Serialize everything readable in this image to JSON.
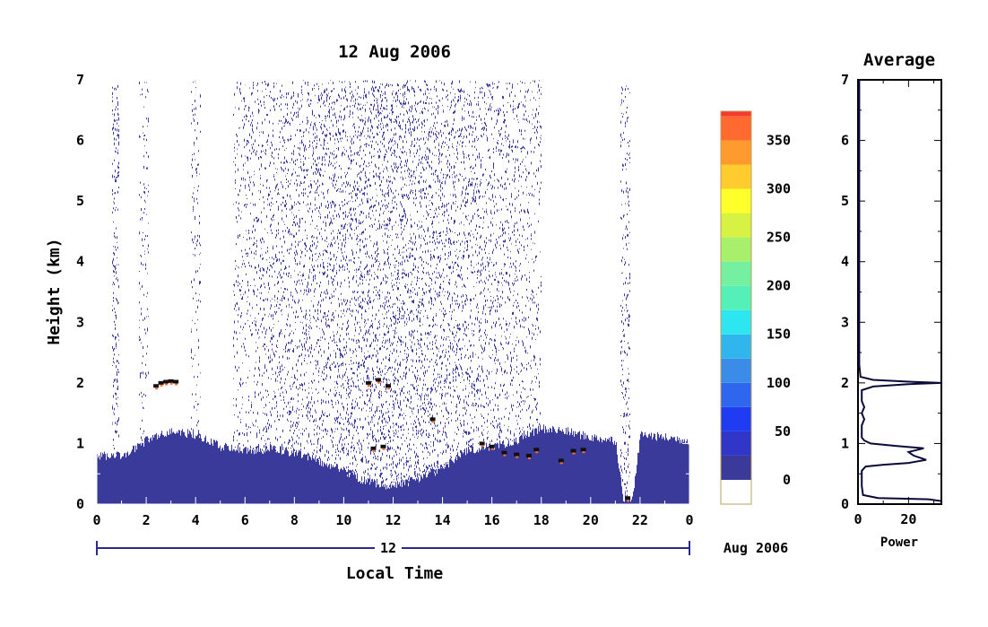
{
  "chart_data": [
    {
      "type": "heatmap",
      "title": "12 Aug 2006",
      "xlabel": "Local Time",
      "ylabel": "Height (km)",
      "date_bar": {
        "day": "12",
        "month_year": "Aug 2006"
      },
      "x_ticks": [
        "0",
        "2",
        "4",
        "6",
        "8",
        "10",
        "12",
        "14",
        "16",
        "18",
        "20",
        "22",
        "0"
      ],
      "x_range_hours": [
        0,
        24
      ],
      "y_ticks": [
        "0",
        "1",
        "2",
        "3",
        "4",
        "5",
        "6",
        "7"
      ],
      "y_range_km": [
        0,
        7
      ],
      "grid": false,
      "colorbar": {
        "ticks": [
          "0",
          "50",
          "100",
          "150",
          "200",
          "250",
          "300",
          "350"
        ],
        "range": [
          -25,
          380
        ],
        "levels": [
          {
            "from": -25,
            "to": 0,
            "color": "#ffffff"
          },
          {
            "from": 0,
            "to": 25,
            "color": "#3a3a9a"
          },
          {
            "from": 25,
            "to": 50,
            "color": "#2f36c8"
          },
          {
            "from": 50,
            "to": 75,
            "color": "#1f3cf2"
          },
          {
            "from": 75,
            "to": 100,
            "color": "#2f66ee"
          },
          {
            "from": 100,
            "to": 125,
            "color": "#3a8ce8"
          },
          {
            "from": 125,
            "to": 150,
            "color": "#30b6ec"
          },
          {
            "from": 150,
            "to": 175,
            "color": "#2de6f0"
          },
          {
            "from": 175,
            "to": 200,
            "color": "#55f0b8"
          },
          {
            "from": 200,
            "to": 225,
            "color": "#75f0a0"
          },
          {
            "from": 225,
            "to": 250,
            "color": "#a8ef6c"
          },
          {
            "from": 250,
            "to": 275,
            "color": "#d8f244"
          },
          {
            "from": 275,
            "to": 300,
            "color": "#ffff2a"
          },
          {
            "from": 300,
            "to": 325,
            "color": "#ffcc30"
          },
          {
            "from": 325,
            "to": 350,
            "color": "#ff9a2f"
          },
          {
            "from": 350,
            "to": 375,
            "color": "#ff6a30"
          },
          {
            "from": 375,
            "to": 380,
            "color": "#f53a30"
          }
        ]
      },
      "boundary_layer_top_km": [
        {
          "x": 0,
          "y": 0.8
        },
        {
          "x": 1,
          "y": 0.8
        },
        {
          "x": 2,
          "y": 1.05
        },
        {
          "x": 3,
          "y": 1.2
        },
        {
          "x": 4,
          "y": 1.15
        },
        {
          "x": 5,
          "y": 0.95
        },
        {
          "x": 6,
          "y": 0.9
        },
        {
          "x": 7,
          "y": 0.9
        },
        {
          "x": 8,
          "y": 0.85
        },
        {
          "x": 9,
          "y": 0.7
        },
        {
          "x": 10,
          "y": 0.55
        },
        {
          "x": 11,
          "y": 0.35
        },
        {
          "x": 12,
          "y": 0.3
        },
        {
          "x": 13,
          "y": 0.4
        },
        {
          "x": 14,
          "y": 0.6
        },
        {
          "x": 15,
          "y": 0.9
        },
        {
          "x": 16,
          "y": 0.95
        },
        {
          "x": 17,
          "y": 1.05
        },
        {
          "x": 18,
          "y": 1.25
        },
        {
          "x": 19,
          "y": 1.2
        },
        {
          "x": 20,
          "y": 1.1
        },
        {
          "x": 21,
          "y": 1.05
        },
        {
          "x": 21.3,
          "y": 0.1
        },
        {
          "x": 21.7,
          "y": 0.1
        },
        {
          "x": 22,
          "y": 1.15
        },
        {
          "x": 23,
          "y": 1.1
        },
        {
          "x": 24,
          "y": 1.05
        }
      ],
      "noise_band_hours": [
        5.5,
        18.0
      ],
      "strong_echoes": [
        {
          "x": 2.4,
          "y": 1.95
        },
        {
          "x": 2.6,
          "y": 2.0
        },
        {
          "x": 2.8,
          "y": 2.02
        },
        {
          "x": 3.0,
          "y": 2.03
        },
        {
          "x": 3.2,
          "y": 2.02
        },
        {
          "x": 11.0,
          "y": 2.0
        },
        {
          "x": 11.4,
          "y": 2.05
        },
        {
          "x": 11.8,
          "y": 1.95
        },
        {
          "x": 11.2,
          "y": 0.92
        },
        {
          "x": 11.6,
          "y": 0.95
        },
        {
          "x": 13.6,
          "y": 1.4
        },
        {
          "x": 15.6,
          "y": 1.0
        },
        {
          "x": 16.0,
          "y": 0.95
        },
        {
          "x": 16.5,
          "y": 0.85
        },
        {
          "x": 17.0,
          "y": 0.82
        },
        {
          "x": 17.5,
          "y": 0.8
        },
        {
          "x": 17.8,
          "y": 0.9
        },
        {
          "x": 18.8,
          "y": 0.72
        },
        {
          "x": 19.3,
          "y": 0.88
        },
        {
          "x": 19.7,
          "y": 0.9
        },
        {
          "x": 21.5,
          "y": 0.1
        }
      ]
    },
    {
      "type": "line",
      "title": "Average",
      "xlabel": "Power",
      "x_ticks": [
        "0",
        "20"
      ],
      "x_range": [
        0,
        33
      ],
      "y_ticks": [
        "0",
        "1",
        "2",
        "3",
        "4",
        "5",
        "6",
        "7"
      ],
      "y_range_km": [
        0,
        7
      ],
      "series": [
        {
          "values": [
            {
              "x": 33,
              "y": 0.05
            },
            {
              "x": 28,
              "y": 0.08
            },
            {
              "x": 8,
              "y": 0.1
            },
            {
              "x": 2,
              "y": 0.15
            },
            {
              "x": 1.5,
              "y": 0.3
            },
            {
              "x": 1.5,
              "y": 0.55
            },
            {
              "x": 3,
              "y": 0.62
            },
            {
              "x": 10,
              "y": 0.65
            },
            {
              "x": 20,
              "y": 0.68
            },
            {
              "x": 27,
              "y": 0.73
            },
            {
              "x": 22,
              "y": 0.8
            },
            {
              "x": 20,
              "y": 0.86
            },
            {
              "x": 26,
              "y": 0.92
            },
            {
              "x": 15,
              "y": 0.96
            },
            {
              "x": 5,
              "y": 1.0
            },
            {
              "x": 2.5,
              "y": 1.05
            },
            {
              "x": 1.5,
              "y": 1.1
            },
            {
              "x": 1.5,
              "y": 1.3
            },
            {
              "x": 2.5,
              "y": 1.4
            },
            {
              "x": 1.5,
              "y": 1.5
            },
            {
              "x": 2.5,
              "y": 1.6
            },
            {
              "x": 1.5,
              "y": 1.7
            },
            {
              "x": 1.5,
              "y": 1.88
            },
            {
              "x": 6,
              "y": 1.94
            },
            {
              "x": 20,
              "y": 1.98
            },
            {
              "x": 33,
              "y": 2.0
            },
            {
              "x": 20,
              "y": 2.02
            },
            {
              "x": 6,
              "y": 2.05
            },
            {
              "x": 1,
              "y": 2.1
            },
            {
              "x": 0.5,
              "y": 2.3
            },
            {
              "x": 0.5,
              "y": 7.0
            }
          ]
        }
      ]
    }
  ]
}
